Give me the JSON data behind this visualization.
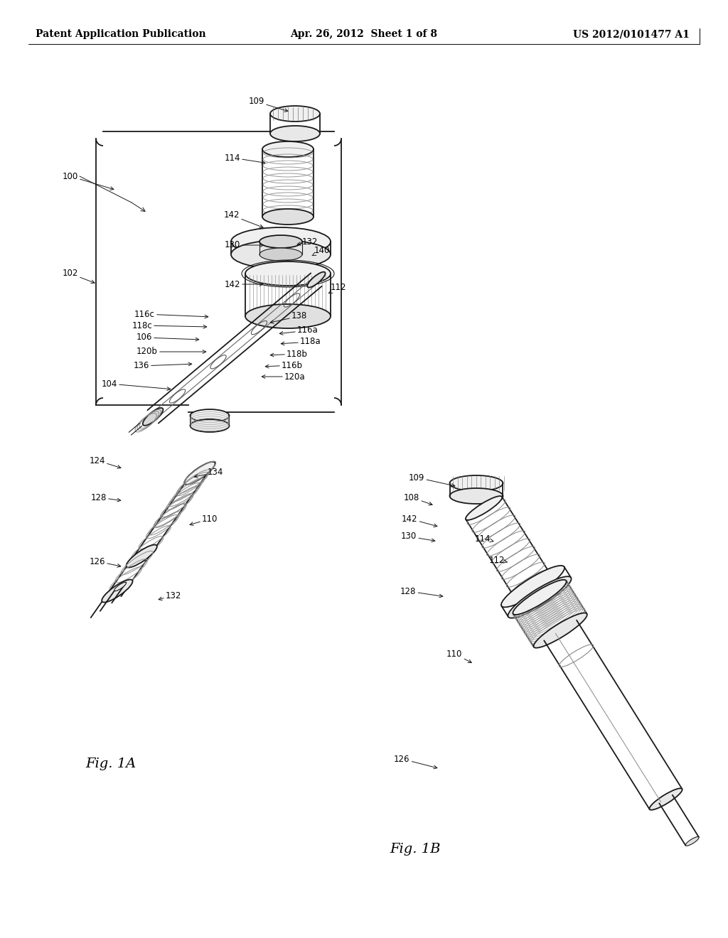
{
  "background_color": "#ffffff",
  "header_left": "Patent Application Publication",
  "header_center": "Apr. 26, 2012  Sheet 1 of 8",
  "header_right": "US 2012/0101477 A1",
  "fig1a_label": "Fig. 1A",
  "fig1b_label": "Fig. 1B",
  "header_fontsize": 10,
  "ref_fontsize": 8.5,
  "fig_label_fontsize": 14,
  "line_color": "#1a1a1a",
  "text_color": "#000000"
}
